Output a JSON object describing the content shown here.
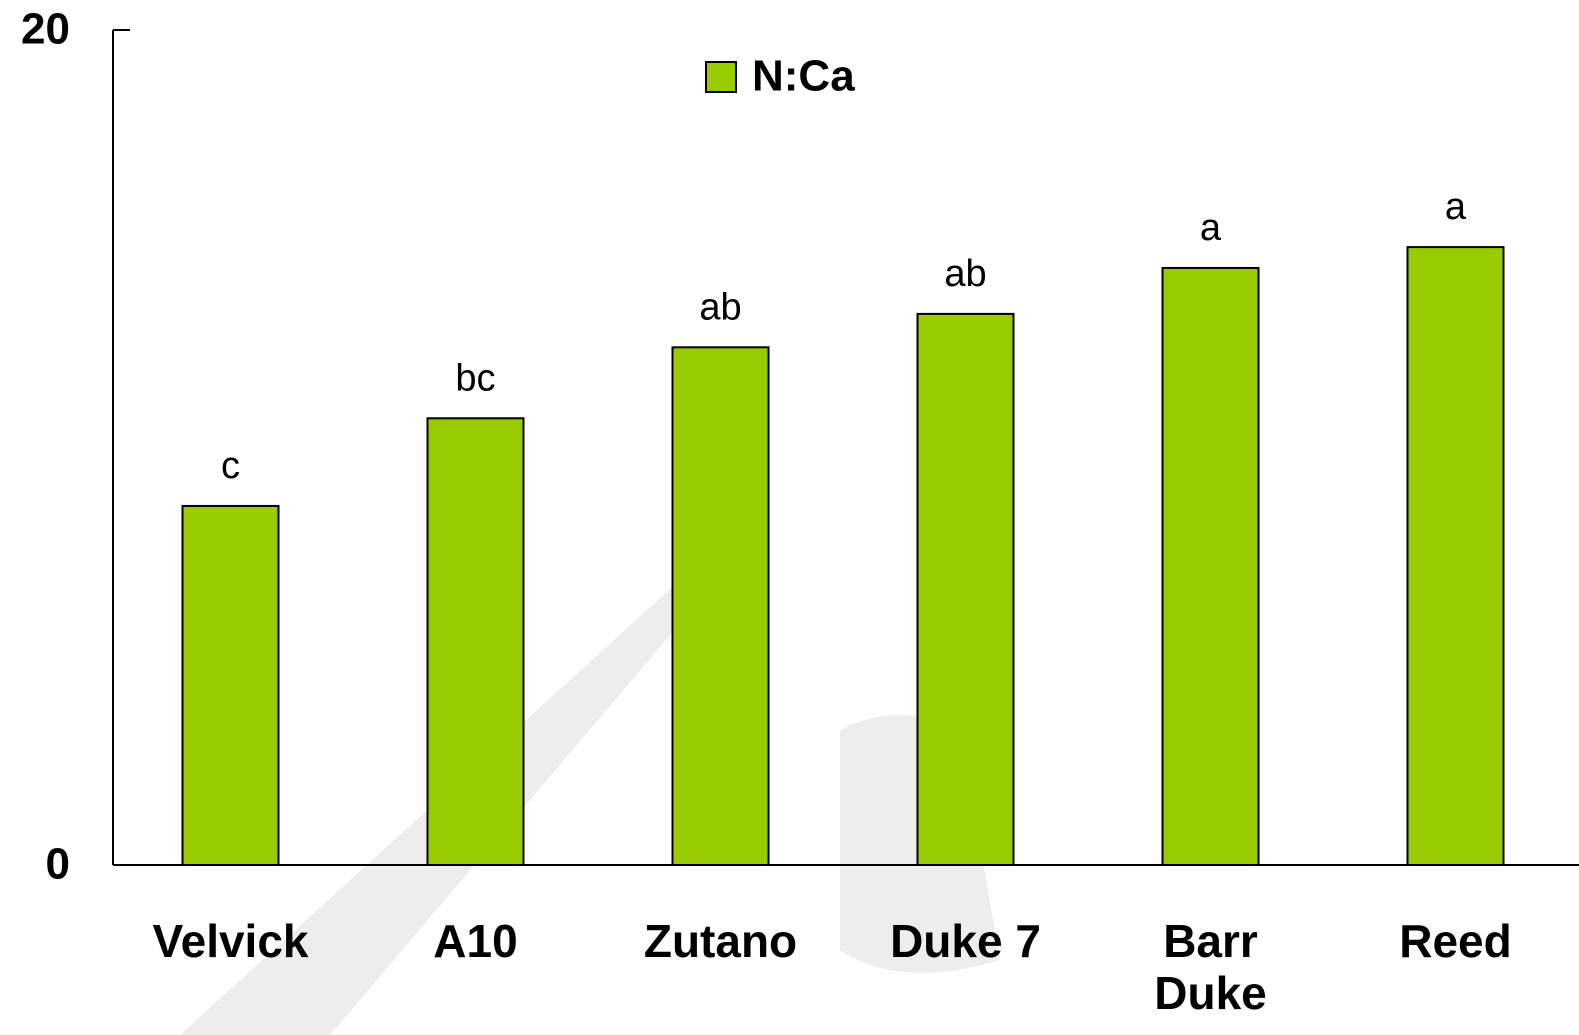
{
  "chart_data": {
    "type": "bar",
    "categories": [
      "Velvick",
      "A10",
      "Zutano",
      "Duke 7",
      "Barr Duke",
      "Reed"
    ],
    "series": [
      {
        "name": "N:Ca",
        "color": "#99cc00",
        "values": [
          8.6,
          10.7,
          12.4,
          13.2,
          14.3,
          14.8
        ]
      }
    ],
    "annotations": [
      "c",
      "bc",
      "ab",
      "ab",
      "a",
      "a"
    ],
    "ylim": [
      0,
      20
    ],
    "yticks": [
      0,
      20
    ],
    "grid": false,
    "legend": "top"
  }
}
